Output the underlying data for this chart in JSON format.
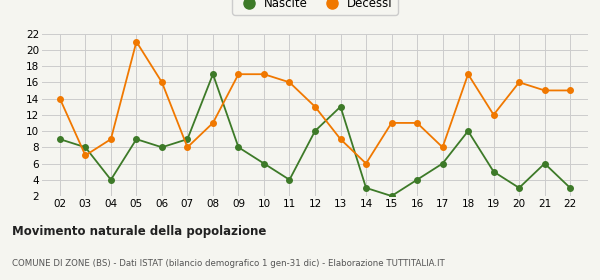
{
  "years": [
    2,
    3,
    4,
    5,
    6,
    7,
    8,
    9,
    10,
    11,
    12,
    13,
    14,
    15,
    16,
    17,
    18,
    19,
    20,
    21,
    22
  ],
  "nascite": [
    9,
    8,
    4,
    9,
    8,
    9,
    17,
    8,
    6,
    4,
    10,
    13,
    3,
    2,
    4,
    6,
    10,
    5,
    3,
    6,
    3
  ],
  "decessi": [
    14,
    7,
    9,
    21,
    16,
    8,
    11,
    17,
    17,
    16,
    13,
    9,
    6,
    11,
    11,
    8,
    17,
    12,
    16,
    15,
    15
  ],
  "nascite_color": "#3d7a28",
  "decessi_color": "#f07800",
  "title": "Movimento naturale della popolazione",
  "subtitle": "COMUNE DI ZONE (BS) - Dati ISTAT (bilancio demografico 1 gen-31 dic) - Elaborazione TUTTITALIA.IT",
  "ylim": [
    2,
    22
  ],
  "yticks": [
    2,
    4,
    6,
    8,
    10,
    12,
    14,
    16,
    18,
    20,
    22
  ],
  "background_color": "#f5f5f0",
  "grid_color": "#cccccc",
  "legend_nascite": "Nascite",
  "legend_decessi": "Decessi"
}
